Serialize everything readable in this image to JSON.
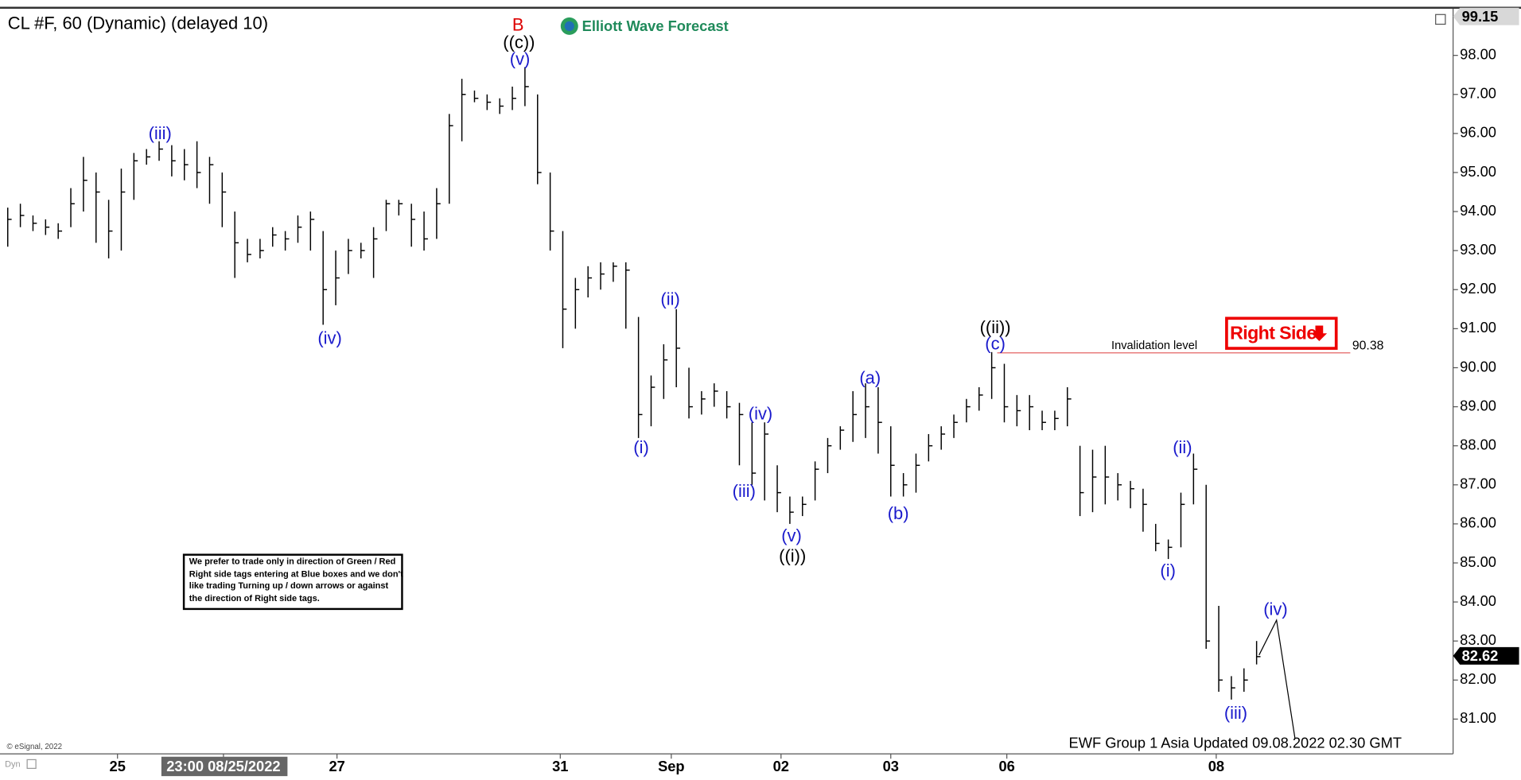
{
  "chart_data": {
    "type": "ohlc",
    "title": "CL #F, 60 (Dynamic) (delayed 10)",
    "logo": "Elliott Wave Forecast",
    "copyright": "© eSignal, 2022",
    "footer": "EWF Group 1 Asia Updated 09.08.2022 02.30 GMT",
    "corner_label": "Dyn",
    "tag": "Right Side",
    "note": [
      "We prefer to trade only in direction of Green / Red",
      "Right side tags entering at Blue boxes and we don't",
      "like trading Turning up / down arrows or against",
      "the direction of Right side tags."
    ],
    "invalidation": {
      "label": "Invalidation level",
      "value": 90.38
    },
    "price_markers": [
      99.15,
      82.62
    ],
    "wave_labels": [
      "B",
      "((c))",
      "(v)",
      "(iii)",
      "(iv)",
      "(i)",
      "(ii)",
      "(iv)",
      "(iii)",
      "(v)",
      "((i))",
      "(a)",
      "(b)",
      "((ii))",
      "(c)",
      "(ii)",
      "(i)",
      "(iv)",
      "(iii)"
    ],
    "xlim": [
      -0.23,
      114.5
    ],
    "xticks": [
      {
        "value": 8.7,
        "label": "25"
      },
      {
        "value": 17.1,
        "label": "23:00 08/25/2022"
      },
      {
        "value": 26.1,
        "label": "27"
      },
      {
        "value": 43.8,
        "label": "31"
      },
      {
        "value": 52.6,
        "label": "Sep"
      },
      {
        "value": 61.3,
        "label": "02"
      },
      {
        "value": 70,
        "label": "03"
      },
      {
        "value": 79.2,
        "label": "06"
      },
      {
        "value": 95.8,
        "label": "08"
      }
    ],
    "ylim": [
      80.11,
      99.22
    ],
    "yticks": [
      {
        "value": 81,
        "label": "81.00"
      },
      {
        "value": 82,
        "label": "82.00"
      },
      {
        "value": 83,
        "label": "83.00"
      },
      {
        "value": 84,
        "label": "84.00"
      },
      {
        "value": 85,
        "label": "85.00"
      },
      {
        "value": 86,
        "label": "86.00"
      },
      {
        "value": 87,
        "label": "87.00"
      },
      {
        "value": 88,
        "label": "88.00"
      },
      {
        "value": 89,
        "label": "89.00"
      },
      {
        "value": 90,
        "label": "90.00"
      },
      {
        "value": 91,
        "label": "91.00"
      },
      {
        "value": 92,
        "label": "92.00"
      },
      {
        "value": 93,
        "label": "93.00"
      },
      {
        "value": 94,
        "label": "94.00"
      },
      {
        "value": 95,
        "label": "95.00"
      },
      {
        "value": 96,
        "label": "96.00"
      },
      {
        "value": 97,
        "label": "97.00"
      },
      {
        "value": 98,
        "label": "98.00"
      }
    ],
    "color": "#000000",
    "close": [
      93.8,
      93.9,
      93.7,
      93.6,
      93.5,
      94.2,
      94.8,
      94.5,
      93.5,
      94.5,
      95.3,
      95.4,
      95.6,
      95.3,
      95.2,
      95.0,
      95.2,
      94.5,
      93.2,
      92.9,
      93.0,
      93.4,
      93.3,
      93.6,
      93.8,
      92.0,
      92.3,
      93.0,
      93.0,
      93.3,
      94.2,
      94.2,
      93.8,
      93.3,
      94.2,
      96.2,
      97.0,
      96.9,
      96.8,
      96.7,
      96.9,
      97.2,
      95.0,
      93.5,
      91.5,
      92.0,
      92.3,
      92.4,
      92.6,
      92.5,
      88.8,
      89.5,
      90.2,
      90.5,
      89.0,
      89.2,
      89.4,
      89.0,
      88.8,
      87.3,
      88.3,
      86.8,
      86.3,
      86.5,
      87.4,
      88.0,
      88.4,
      88.8,
      89.0,
      88.6,
      87.5,
      87.0,
      87.5,
      88.0,
      88.3,
      88.6,
      89.0,
      89.3,
      90.0,
      89.0,
      88.9,
      89.0,
      88.6,
      88.7,
      89.2,
      86.8,
      87.2,
      87.2,
      87.0,
      86.9,
      86.5,
      85.5,
      85.4,
      86.5,
      87.4,
      83.0,
      82.0,
      81.8,
      82.0,
      82.6
    ],
    "high": [
      94.1,
      94.2,
      93.9,
      93.8,
      93.7,
      94.6,
      95.4,
      95.0,
      94.3,
      95.1,
      95.5,
      95.6,
      95.8,
      95.7,
      95.6,
      95.8,
      95.4,
      95.0,
      94.0,
      93.3,
      93.3,
      93.6,
      93.5,
      93.9,
      94.0,
      93.5,
      93.0,
      93.3,
      93.2,
      93.6,
      94.3,
      94.3,
      94.2,
      94.0,
      94.6,
      96.5,
      97.4,
      97.1,
      97.0,
      96.9,
      97.2,
      97.7,
      97.0,
      95.0,
      93.5,
      92.3,
      92.6,
      92.7,
      92.7,
      92.7,
      91.3,
      89.8,
      90.6,
      91.5,
      90.0,
      89.4,
      89.6,
      89.4,
      89.1,
      88.6,
      88.6,
      87.5,
      86.7,
      86.7,
      87.6,
      88.2,
      88.5,
      89.4,
      89.6,
      89.5,
      88.5,
      87.3,
      87.8,
      88.3,
      88.5,
      88.8,
      89.2,
      89.5,
      90.4,
      90.1,
      89.3,
      89.3,
      88.9,
      88.9,
      89.5,
      88.0,
      87.9,
      88.0,
      87.3,
      87.1,
      86.9,
      86.0,
      85.6,
      86.8,
      87.8,
      87.0,
      83.9,
      82.1,
      82.3,
      83.0
    ],
    "low": [
      93.1,
      93.6,
      93.5,
      93.4,
      93.3,
      93.6,
      94.0,
      93.2,
      92.8,
      93.0,
      94.3,
      95.2,
      95.3,
      94.9,
      94.8,
      94.6,
      94.2,
      93.6,
      92.3,
      92.7,
      92.8,
      93.1,
      93.0,
      93.2,
      93.0,
      91.1,
      91.6,
      92.4,
      92.8,
      92.3,
      93.5,
      93.9,
      93.1,
      93.0,
      93.3,
      94.2,
      95.8,
      96.8,
      96.6,
      96.5,
      96.6,
      96.7,
      94.7,
      93.0,
      90.5,
      91.0,
      91.8,
      92.0,
      92.2,
      91.0,
      88.2,
      88.5,
      89.2,
      89.5,
      88.7,
      88.8,
      89.0,
      88.7,
      87.5,
      87.0,
      86.6,
      86.3,
      86.0,
      86.2,
      86.6,
      87.3,
      87.9,
      88.1,
      88.2,
      87.8,
      86.7,
      86.7,
      86.8,
      87.6,
      87.9,
      88.2,
      88.6,
      88.9,
      89.2,
      88.6,
      88.5,
      88.4,
      88.4,
      88.4,
      88.5,
      86.2,
      86.3,
      86.5,
      86.6,
      86.4,
      85.8,
      85.3,
      85.1,
      85.4,
      86.5,
      82.8,
      81.7,
      81.5,
      81.7,
      82.4
    ]
  }
}
